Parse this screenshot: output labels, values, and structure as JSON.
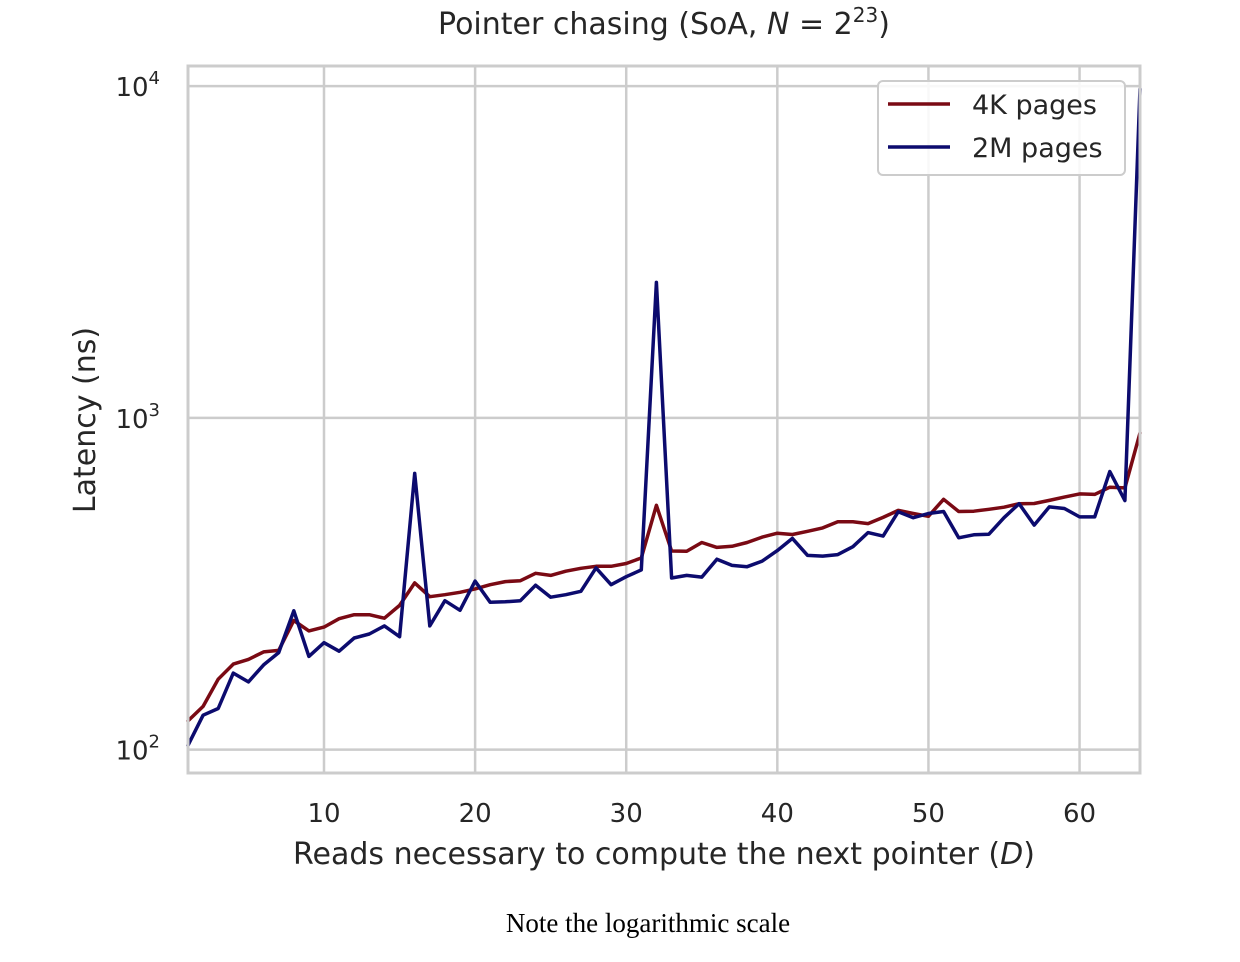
{
  "caption": "Note the logarithmic scale",
  "chart_data": {
    "type": "line",
    "title_main": "Pointer chasing (SoA, ",
    "title_var": "N",
    "title_eq": " = 2",
    "title_exp": "23",
    "title_close": ")",
    "xlabel_main": "Reads necessary to compute the next pointer (",
    "xlabel_var": "D",
    "xlabel_close": ")",
    "ylabel": "Latency (ns)",
    "xlim": [
      1,
      64
    ],
    "ylim": [
      85,
      11500
    ],
    "yscale": "log",
    "grid": true,
    "legend_position": "top-right",
    "xticks": [
      10,
      20,
      30,
      40,
      50,
      60
    ],
    "xtick_labels": [
      "10",
      "20",
      "30",
      "40",
      "50",
      "60"
    ],
    "yticks": [
      100,
      1000,
      10000
    ],
    "ytick_base": "10",
    "ytick_exps": [
      "2",
      "3",
      "4"
    ],
    "x": [
      1,
      2,
      3,
      4,
      5,
      6,
      7,
      8,
      9,
      10,
      11,
      12,
      13,
      14,
      15,
      16,
      17,
      18,
      19,
      20,
      21,
      22,
      23,
      24,
      25,
      26,
      27,
      28,
      29,
      30,
      31,
      32,
      33,
      34,
      35,
      36,
      37,
      38,
      39,
      40,
      41,
      42,
      43,
      44,
      45,
      46,
      47,
      48,
      49,
      50,
      51,
      52,
      53,
      54,
      55,
      56,
      57,
      58,
      59,
      60,
      61,
      62,
      63,
      64
    ],
    "series": [
      {
        "name": "4K pages",
        "color": "#7a0a14",
        "values": [
          122,
          135,
          163,
          181,
          187,
          197,
          199,
          245,
          228,
          234,
          248,
          255,
          255,
          249,
          272,
          318,
          289,
          293,
          298,
          305,
          314,
          321,
          323,
          340,
          335,
          345,
          352,
          357,
          357,
          364,
          378,
          545,
          397,
          396,
          421,
          407,
          410,
          421,
          437,
          449,
          445,
          455,
          466,
          486,
          486,
          480,
          501,
          526,
          515,
          505,
          568,
          522,
          523,
          530,
          538,
          551,
          552,
          564,
          577,
          590,
          588,
          618,
          615,
          900
        ]
      },
      {
        "name": "2M pages",
        "color": "#0c0b6e",
        "values": [
          103,
          127,
          133,
          170,
          160,
          180,
          196,
          262,
          191,
          210,
          198,
          217,
          223,
          236,
          219,
          680,
          236,
          281,
          263,
          322,
          278,
          279,
          281,
          313,
          288,
          293,
          300,
          353,
          314,
          332,
          348,
          2560,
          329,
          335,
          331,
          375,
          359,
          356,
          370,
          398,
          433,
          385,
          383,
          387,
          409,
          451,
          440,
          521,
          500,
          515,
          522,
          435,
          444,
          446,
          500,
          551,
          475,
          539,
          533,
          503,
          503,
          689,
          563,
          9800
        ]
      }
    ]
  }
}
